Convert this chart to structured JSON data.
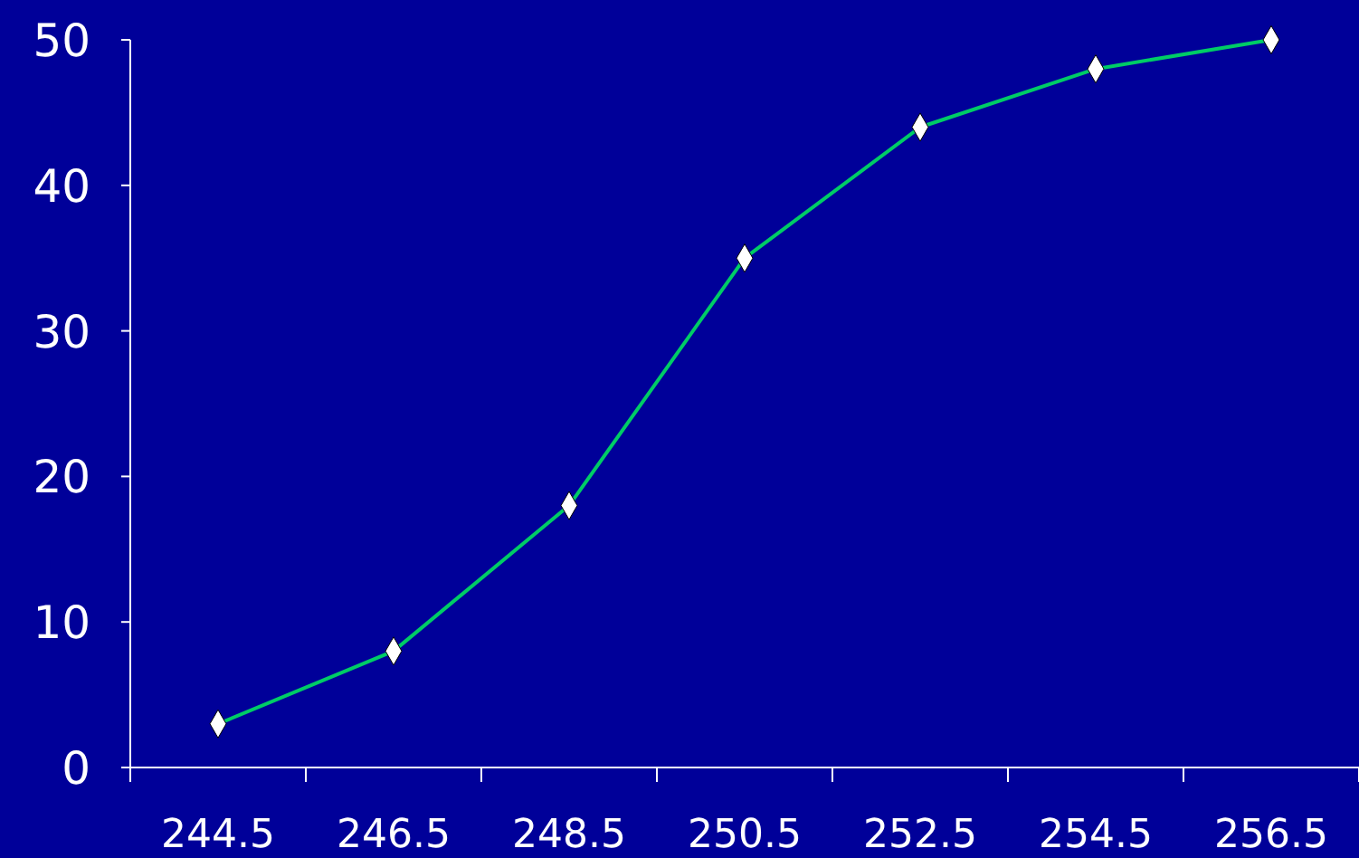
{
  "chart_data": {
    "type": "line",
    "categories": [
      "244.5",
      "246.5",
      "248.5",
      "250.5",
      "252.5",
      "254.5",
      "256.5"
    ],
    "series": [
      {
        "color": "#00cc66",
        "values": [
          3,
          8,
          18,
          35,
          44,
          48,
          50
        ]
      }
    ],
    "ylim": [
      0,
      50
    ],
    "yticks": [
      0,
      10,
      20,
      30,
      40,
      50
    ],
    "marker": "diamond",
    "line_style": "solid"
  }
}
